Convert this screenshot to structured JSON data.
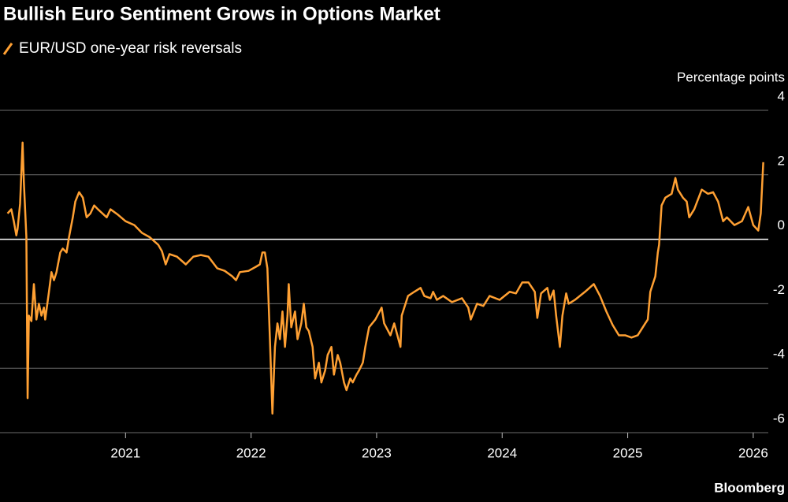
{
  "chart_data": {
    "type": "line",
    "title": "Bullish Euro Sentiment Grows in Options Market",
    "y_label": "Percentage points",
    "source": "Bloomberg",
    "xlim": [
      2020,
      2026.12
    ],
    "xticks": [
      2021,
      2022,
      2023,
      2024,
      2025,
      2026
    ],
    "ylim": [
      -6,
      4
    ],
    "yticks": [
      4,
      2,
      0,
      -2,
      -4,
      -6
    ],
    "grid": true,
    "legend": "top-left",
    "x": [
      2020.06,
      2020.09,
      2020.11,
      2020.13,
      2020.14,
      2020.16,
      2020.18,
      2020.19,
      2020.21,
      2020.22,
      2020.23,
      2020.25,
      2020.27,
      2020.29,
      2020.31,
      2020.33,
      2020.35,
      2020.36,
      2020.39,
      2020.41,
      2020.43,
      2020.45,
      2020.48,
      2020.5,
      2020.53,
      2020.55,
      2020.58,
      2020.6,
      2020.63,
      2020.66,
      2020.69,
      2020.72,
      2020.75,
      2020.78,
      2020.85,
      2020.88,
      2020.94,
      2021.0,
      2021.07,
      2021.13,
      2021.19,
      2021.26,
      2021.29,
      2021.32,
      2021.35,
      2021.41,
      2021.48,
      2021.54,
      2021.6,
      2021.66,
      2021.73,
      2021.79,
      2021.85,
      2021.88,
      2021.91,
      2021.98,
      2022.04,
      2022.07,
      2022.09,
      2022.11,
      2022.13,
      2022.15,
      2022.17,
      2022.19,
      2022.21,
      2022.23,
      2022.25,
      2022.27,
      2022.29,
      2022.3,
      2022.32,
      2022.35,
      2022.37,
      2022.4,
      2022.42,
      2022.44,
      2022.46,
      2022.49,
      2022.51,
      2022.54,
      2022.56,
      2022.59,
      2022.61,
      2022.64,
      2022.66,
      2022.69,
      2022.71,
      2022.74,
      2022.76,
      2022.79,
      2022.81,
      2022.84,
      2022.86,
      2022.89,
      2022.91,
      2022.94,
      2022.99,
      2023.04,
      2023.06,
      2023.11,
      2023.14,
      2023.19,
      2023.2,
      2023.25,
      2023.3,
      2023.35,
      2023.38,
      2023.43,
      2023.45,
      2023.48,
      2023.53,
      2023.6,
      2023.68,
      2023.73,
      2023.75,
      2023.8,
      2023.85,
      2023.9,
      2023.98,
      2024.06,
      2024.11,
      2024.16,
      2024.21,
      2024.26,
      2024.28,
      2024.31,
      2024.36,
      2024.38,
      2024.41,
      2024.43,
      2024.46,
      2024.48,
      2024.51,
      2024.53,
      2024.58,
      2024.66,
      2024.73,
      2024.78,
      2024.83,
      2024.88,
      2024.93,
      2024.98,
      2025.03,
      2025.08,
      2025.14,
      2025.16,
      2025.18,
      2025.22,
      2025.24,
      2025.25,
      2025.27,
      2025.3,
      2025.35,
      2025.38,
      2025.4,
      2025.44,
      2025.47,
      2025.49,
      2025.53,
      2025.59,
      2025.64,
      2025.68,
      2025.72,
      2025.76,
      2025.79,
      2025.85,
      2025.91,
      2025.96,
      2026.0,
      2026.04,
      2026.06,
      2026.08
    ],
    "series": [
      {
        "name": "EUR/USD one-year risk reversals",
        "color": "#ffa033",
        "values": [
          0.8,
          0.93,
          0.56,
          0.12,
          0.32,
          1.1,
          3.0,
          1.78,
          0.07,
          -4.93,
          -2.37,
          -2.54,
          -1.39,
          -2.49,
          -2.0,
          -2.37,
          -2.12,
          -2.49,
          -1.63,
          -1.02,
          -1.27,
          -1.02,
          -0.41,
          -0.29,
          -0.41,
          0.07,
          0.68,
          1.17,
          1.46,
          1.29,
          0.68,
          0.8,
          1.05,
          0.93,
          0.68,
          0.93,
          0.76,
          0.56,
          0.44,
          0.2,
          0.07,
          -0.17,
          -0.37,
          -0.78,
          -0.46,
          -0.54,
          -0.78,
          -0.54,
          -0.49,
          -0.54,
          -0.9,
          -0.98,
          -1.15,
          -1.27,
          -1.02,
          -0.98,
          -0.85,
          -0.78,
          -0.41,
          -0.41,
          -0.9,
          -3.1,
          -5.41,
          -3.34,
          -2.61,
          -3.1,
          -2.24,
          -3.34,
          -2.37,
          -1.39,
          -2.73,
          -2.24,
          -3.1,
          -2.61,
          -2.0,
          -2.73,
          -2.85,
          -3.34,
          -4.32,
          -3.83,
          -4.44,
          -4.07,
          -3.59,
          -3.34,
          -4.2,
          -3.59,
          -3.83,
          -4.44,
          -4.68,
          -4.32,
          -4.44,
          -4.2,
          -4.07,
          -3.83,
          -3.34,
          -2.73,
          -2.49,
          -2.12,
          -2.61,
          -2.98,
          -2.61,
          -3.34,
          -2.37,
          -1.76,
          -1.63,
          -1.51,
          -1.76,
          -1.83,
          -1.63,
          -1.88,
          -1.76,
          -1.95,
          -1.83,
          -2.12,
          -2.49,
          -2.0,
          -2.07,
          -1.76,
          -1.88,
          -1.63,
          -1.68,
          -1.34,
          -1.34,
          -1.63,
          -2.44,
          -1.68,
          -1.51,
          -1.88,
          -1.59,
          -2.37,
          -3.34,
          -2.37,
          -1.68,
          -2.0,
          -1.88,
          -1.63,
          -1.39,
          -1.76,
          -2.24,
          -2.66,
          -2.98,
          -2.98,
          -3.05,
          -2.98,
          -2.61,
          -2.49,
          -1.63,
          -1.15,
          -0.41,
          -0.17,
          1.05,
          1.29,
          1.41,
          1.9,
          1.54,
          1.29,
          1.17,
          0.68,
          0.93,
          1.54,
          1.41,
          1.46,
          1.17,
          0.56,
          0.68,
          0.44,
          0.56,
          1.0,
          0.44,
          0.27,
          0.8,
          2.39
        ]
      }
    ]
  }
}
